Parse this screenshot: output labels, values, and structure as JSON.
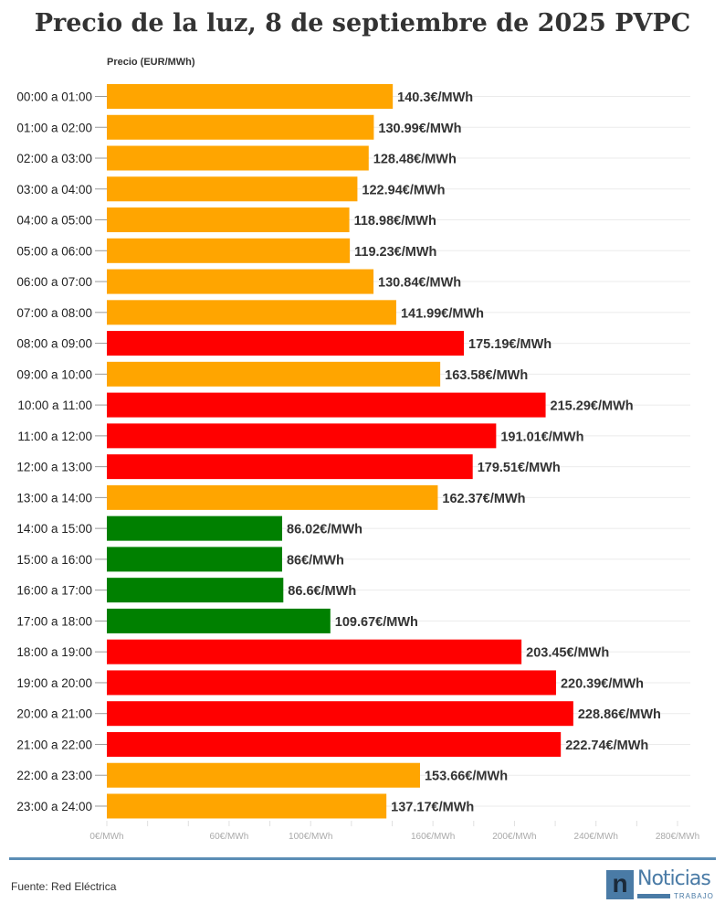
{
  "chart_data": {
    "type": "bar",
    "orientation": "horizontal",
    "title": "Precio de la luz, 8 de septiembre de 2025 PVPC",
    "ylabel": "Precio (EUR/MWh)",
    "categories": [
      "00:00 a 01:00",
      "01:00 a 02:00",
      "02:00 a 03:00",
      "03:00 a 04:00",
      "04:00 a 05:00",
      "05:00 a 06:00",
      "06:00 a 07:00",
      "07:00 a 08:00",
      "08:00 a 09:00",
      "09:00 a 10:00",
      "10:00 a 11:00",
      "11:00 a 12:00",
      "12:00 a 13:00",
      "13:00 a 14:00",
      "14:00 a 15:00",
      "15:00 a 16:00",
      "16:00 a 17:00",
      "17:00 a 18:00",
      "18:00 a 19:00",
      "19:00 a 20:00",
      "20:00 a 21:00",
      "21:00 a 22:00",
      "22:00 a 23:00",
      "23:00 a 24:00"
    ],
    "values": [
      140.3,
      130.99,
      128.48,
      122.94,
      118.98,
      119.23,
      130.84,
      141.99,
      175.19,
      163.58,
      215.29,
      191.01,
      179.51,
      162.37,
      86.02,
      86,
      86.6,
      109.67,
      203.45,
      220.39,
      228.86,
      222.74,
      153.66,
      137.17
    ],
    "data_labels": [
      "140.3€/MWh",
      "130.99€/MWh",
      "128.48€/MWh",
      "122.94€/MWh",
      "118.98€/MWh",
      "119.23€/MWh",
      "130.84€/MWh",
      "141.99€/MWh",
      "175.19€/MWh",
      "163.58€/MWh",
      "215.29€/MWh",
      "191.01€/MWh",
      "179.51€/MWh",
      "162.37€/MWh",
      "86.02€/MWh",
      "86€/MWh",
      "86.6€/MWh",
      "109.67€/MWh",
      "203.45€/MWh",
      "220.39€/MWh",
      "228.86€/MWh",
      "222.74€/MWh",
      "153.66€/MWh",
      "137.17€/MWh"
    ],
    "levels": [
      "mid",
      "mid",
      "mid",
      "mid",
      "mid",
      "mid",
      "mid",
      "mid",
      "high",
      "mid",
      "high",
      "high",
      "high",
      "mid",
      "low",
      "low",
      "low",
      "low",
      "high",
      "high",
      "high",
      "high",
      "mid",
      "mid"
    ],
    "colors": {
      "low": "#008000",
      "mid": "#ffa500",
      "high": "#ff0000"
    },
    "xlim": [
      0,
      280
    ],
    "x_ticks": [
      0,
      20,
      40,
      60,
      80,
      100,
      120,
      140,
      160,
      180,
      200,
      220,
      240,
      260,
      280
    ],
    "x_tick_labels": [
      {
        "value": 0,
        "label": "0€/MWh"
      },
      {
        "value": 60,
        "label": "60€/MWh"
      },
      {
        "value": 100,
        "label": "100€/MWh"
      },
      {
        "value": 160,
        "label": "160€/MWh"
      },
      {
        "value": 200,
        "label": "200€/MWh"
      },
      {
        "value": 240,
        "label": "240€/MWh"
      },
      {
        "value": 280,
        "label": "280€/MWh"
      }
    ],
    "grid": true
  },
  "footer": {
    "source": "Fuente: Red Eléctrica",
    "logo_text": "Noticias",
    "logo_sub": "TRABAJO"
  }
}
